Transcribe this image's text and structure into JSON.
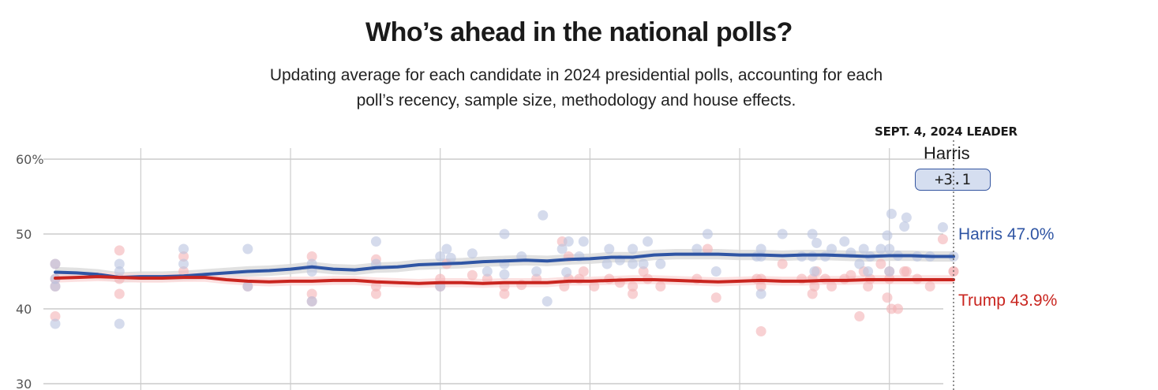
{
  "header": {
    "title": "Who’s ahead in the national polls?",
    "subtitle": "Updating average for each candidate in 2024 presidential polls, accounting for each poll’s recency, sample size, methodology and house effects."
  },
  "leader": {
    "heading": "SEPT. 4, 2024 LEADER",
    "name": "Harris",
    "margin": "+3.1"
  },
  "colors": {
    "harris": "#2f55a4",
    "harris_dot": "#b9c3e0",
    "harris_band": "#d9d9d9",
    "trump": "#c9251f",
    "trump_dot": "#f3b3b5",
    "trump_band": "#fbd9da",
    "grid": "#cccccc"
  },
  "chart_data": {
    "type": "line",
    "title": "Who’s ahead in the national polls?",
    "xlabel": "",
    "ylabel": "",
    "x_units": "day index (day 42 = Sept. 4, 2024)",
    "xlim": [
      0,
      42
    ],
    "ylim": [
      30,
      62
    ],
    "yticks": [
      {
        "value": 60,
        "label": "60%"
      },
      {
        "value": 50,
        "label": "50"
      },
      {
        "value": 40,
        "label": "40"
      },
      {
        "value": 30,
        "label": "30"
      }
    ],
    "xgrid_days": [
      4,
      11,
      18,
      25,
      32,
      39
    ],
    "end_marker_day": 42,
    "legend": "end-labels-right",
    "series": [
      {
        "name": "Harris",
        "end_label": "Harris 47.0%",
        "final_value": 47.0,
        "trend": [
          [
            0,
            44.9
          ],
          [
            1,
            44.8
          ],
          [
            2,
            44.6
          ],
          [
            3,
            44.2
          ],
          [
            4,
            44.3
          ],
          [
            5,
            44.3
          ],
          [
            6,
            44.4
          ],
          [
            7,
            44.6
          ],
          [
            8,
            44.8
          ],
          [
            9,
            45.0
          ],
          [
            10,
            45.1
          ],
          [
            11,
            45.3
          ],
          [
            12,
            45.6
          ],
          [
            13,
            45.3
          ],
          [
            14,
            45.2
          ],
          [
            15,
            45.5
          ],
          [
            16,
            45.6
          ],
          [
            17,
            45.9
          ],
          [
            18,
            46.0
          ],
          [
            19,
            46.1
          ],
          [
            20,
            46.3
          ],
          [
            21,
            46.4
          ],
          [
            22,
            46.5
          ],
          [
            23,
            46.4
          ],
          [
            24,
            46.6
          ],
          [
            25,
            46.7
          ],
          [
            26,
            46.9
          ],
          [
            27,
            46.9
          ],
          [
            28,
            47.2
          ],
          [
            29,
            47.3
          ],
          [
            30,
            47.3
          ],
          [
            31,
            47.3
          ],
          [
            32,
            47.2
          ],
          [
            33,
            47.2
          ],
          [
            34,
            47.1
          ],
          [
            35,
            47.2
          ],
          [
            36,
            47.2
          ],
          [
            37,
            47.1
          ],
          [
            38,
            47.0
          ],
          [
            39,
            47.1
          ],
          [
            40,
            47.1
          ],
          [
            41,
            47.0
          ],
          [
            42,
            47.0
          ]
        ],
        "band_halfwidth": 0.7,
        "polls": [
          [
            0,
            46.0
          ],
          [
            0,
            43.0
          ],
          [
            0,
            38.0
          ],
          [
            0,
            44.0
          ],
          [
            3,
            46.0
          ],
          [
            3,
            45.0
          ],
          [
            3,
            38.0
          ],
          [
            6,
            48.0
          ],
          [
            6,
            46.0
          ],
          [
            9,
            43.0
          ],
          [
            9,
            48.0
          ],
          [
            12,
            46.0
          ],
          [
            12,
            45.0
          ],
          [
            12,
            41.0
          ],
          [
            15,
            46.0
          ],
          [
            15,
            49.0
          ],
          [
            18,
            47.0
          ],
          [
            18,
            43.0
          ],
          [
            21,
            50.0
          ],
          [
            21,
            46.0
          ],
          [
            24,
            49.0
          ],
          [
            27,
            48.0
          ],
          [
            27,
            46.0
          ],
          [
            30,
            48.0
          ],
          [
            33,
            47.0
          ],
          [
            33,
            48.0
          ],
          [
            33,
            42.0
          ],
          [
            36,
            47.0
          ],
          [
            39,
            48.0
          ],
          [
            39,
            45.0
          ],
          [
            18.5,
            46.8
          ],
          [
            19.5,
            47.4
          ],
          [
            22.5,
            45.0
          ],
          [
            24.5,
            47.0
          ],
          [
            27.5,
            46.0
          ],
          [
            18.3,
            48.0
          ],
          [
            23.7,
            48.0
          ],
          [
            25.9,
            48.0
          ],
          [
            23.0,
            41.0
          ],
          [
            25.8,
            46.0
          ],
          [
            26.4,
            46.5
          ],
          [
            21.8,
            47.0
          ],
          [
            20.2,
            45.0
          ],
          [
            23.9,
            44.9
          ],
          [
            21.0,
            44.6
          ],
          [
            22.8,
            52.5
          ],
          [
            24.7,
            49.0
          ],
          [
            27.7,
            49.0
          ],
          [
            28.3,
            46.0
          ],
          [
            30.5,
            50.0
          ],
          [
            30.9,
            45.0
          ],
          [
            32.8,
            47.0
          ],
          [
            34.0,
            50.0
          ],
          [
            36.3,
            48.0
          ],
          [
            36.9,
            49.0
          ],
          [
            37.6,
            46.0
          ],
          [
            38.1,
            47.0
          ],
          [
            38.6,
            48.0
          ],
          [
            39.1,
            52.7
          ],
          [
            39.8,
            52.2
          ],
          [
            40.3,
            47.0
          ],
          [
            41.5,
            50.9
          ],
          [
            42.0,
            47.0
          ],
          [
            34.9,
            47.0
          ],
          [
            35.4,
            50.0
          ],
          [
            35.6,
            48.8
          ],
          [
            35.4,
            47.0
          ],
          [
            35.5,
            45.0
          ],
          [
            37.2,
            47.5
          ],
          [
            37.8,
            48.0
          ],
          [
            38.0,
            45.0
          ],
          [
            39.7,
            51.0
          ],
          [
            38.9,
            49.8
          ],
          [
            39.4,
            47.1
          ],
          [
            40.9,
            47.0
          ]
        ]
      },
      {
        "name": "Trump",
        "end_label": "Trump 43.9%",
        "final_value": 43.9,
        "trend": [
          [
            0,
            44.1
          ],
          [
            1,
            44.2
          ],
          [
            2,
            44.3
          ],
          [
            3,
            44.2
          ],
          [
            4,
            44.1
          ],
          [
            5,
            44.1
          ],
          [
            6,
            44.2
          ],
          [
            7,
            44.2
          ],
          [
            8,
            43.9
          ],
          [
            9,
            43.7
          ],
          [
            10,
            43.6
          ],
          [
            11,
            43.7
          ],
          [
            12,
            43.7
          ],
          [
            13,
            43.8
          ],
          [
            14,
            43.8
          ],
          [
            15,
            43.6
          ],
          [
            16,
            43.5
          ],
          [
            17,
            43.4
          ],
          [
            18,
            43.5
          ],
          [
            19,
            43.5
          ],
          [
            20,
            43.4
          ],
          [
            21,
            43.5
          ],
          [
            22,
            43.5
          ],
          [
            23,
            43.5
          ],
          [
            24,
            43.7
          ],
          [
            25,
            43.7
          ],
          [
            26,
            43.8
          ],
          [
            27,
            43.9
          ],
          [
            28,
            43.9
          ],
          [
            29,
            43.8
          ],
          [
            30,
            43.7
          ],
          [
            31,
            43.6
          ],
          [
            32,
            43.7
          ],
          [
            33,
            43.8
          ],
          [
            34,
            43.7
          ],
          [
            35,
            43.7
          ],
          [
            36,
            43.8
          ],
          [
            37,
            43.8
          ],
          [
            38,
            43.9
          ],
          [
            39,
            43.9
          ],
          [
            40,
            43.9
          ],
          [
            41,
            43.9
          ],
          [
            42,
            43.9
          ]
        ],
        "band_halfwidth": 0.6,
        "polls": [
          [
            0,
            46.0
          ],
          [
            0,
            43.0
          ],
          [
            0,
            39.0
          ],
          [
            0,
            44.0
          ],
          [
            3,
            47.8
          ],
          [
            3,
            42.0
          ],
          [
            3,
            44.0
          ],
          [
            6,
            47.0
          ],
          [
            6,
            45.0
          ],
          [
            9,
            43.0
          ],
          [
            12,
            47.0
          ],
          [
            12,
            42.0
          ],
          [
            12,
            41.0
          ],
          [
            15,
            46.6
          ],
          [
            15,
            43.0
          ],
          [
            15,
            42.0
          ],
          [
            18,
            43.0
          ],
          [
            18,
            44.0
          ],
          [
            21,
            42.0
          ],
          [
            21,
            43.0
          ],
          [
            24,
            47.0
          ],
          [
            24,
            44.0
          ],
          [
            27,
            42.0
          ],
          [
            27,
            43.0
          ],
          [
            30,
            44.0
          ],
          [
            33,
            43.0
          ],
          [
            33,
            44.0
          ],
          [
            33,
            37.0
          ],
          [
            36,
            44.0
          ],
          [
            39,
            45.0
          ],
          [
            39,
            44.0
          ],
          [
            42,
            45.0
          ],
          [
            18.3,
            46.0
          ],
          [
            19.5,
            44.5
          ],
          [
            22.5,
            44.0
          ],
          [
            24.5,
            44.0
          ],
          [
            27.5,
            45.0
          ],
          [
            23.8,
            43.0
          ],
          [
            25.9,
            44.0
          ],
          [
            25.2,
            43.0
          ],
          [
            26.4,
            43.5
          ],
          [
            21.8,
            43.2
          ],
          [
            20.2,
            44.0
          ],
          [
            23.7,
            49.0
          ],
          [
            24.7,
            45.0
          ],
          [
            27.7,
            44.0
          ],
          [
            28.3,
            43.0
          ],
          [
            30.5,
            48.0
          ],
          [
            30.9,
            41.5
          ],
          [
            32.8,
            44.0
          ],
          [
            34.0,
            46.0
          ],
          [
            36.3,
            43.0
          ],
          [
            36.9,
            44.0
          ],
          [
            37.6,
            39.0
          ],
          [
            38.1,
            44.0
          ],
          [
            38.6,
            46.0
          ],
          [
            39.1,
            40.0
          ],
          [
            39.8,
            45.0
          ],
          [
            40.3,
            44.0
          ],
          [
            41.5,
            49.3
          ],
          [
            42.0,
            45.0
          ],
          [
            34.9,
            44.0
          ],
          [
            35.4,
            42.0
          ],
          [
            35.6,
            45.0
          ],
          [
            35.4,
            44.0
          ],
          [
            35.5,
            43.0
          ],
          [
            37.2,
            44.5
          ],
          [
            37.8,
            45.0
          ],
          [
            38.0,
            43.0
          ],
          [
            39.7,
            45.0
          ],
          [
            38.9,
            41.5
          ],
          [
            39.4,
            40.0
          ],
          [
            40.9,
            43.0
          ]
        ]
      }
    ]
  }
}
